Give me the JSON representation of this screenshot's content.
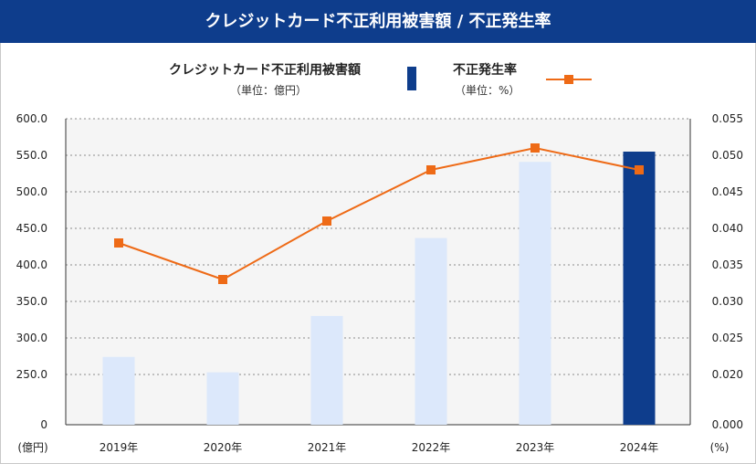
{
  "title": "クレジットカード不正利用被害額 / 不正発生率",
  "legend": {
    "bar_label": "クレジットカード不正利用被害額",
    "bar_unit": "（単位：億円）",
    "line_label": "不正発生率",
    "line_unit": "（単位：%）"
  },
  "colors": {
    "header": "#0e3d8c",
    "bar": "#dce8fb",
    "bar_highlight": "#0e3d8c",
    "line": "#ee6a16",
    "plot_bg": "#f5f5f5",
    "grid": "#8a8a8a"
  },
  "chart_data": {
    "type": "bar",
    "categories": [
      "2019年",
      "2020年",
      "2021年",
      "2022年",
      "2023年",
      "2024年"
    ],
    "series": [
      {
        "values": [
          274.1,
          253.0,
          330.1,
          436.7,
          540.9,
          555.0
        ],
        "axis": "left",
        "type": "bar"
      },
      {
        "values": [
          0.038,
          0.033,
          0.041,
          0.048,
          0.051,
          0.048
        ],
        "axis": "right",
        "type": "line"
      }
    ],
    "highlight_category": "2024年",
    "left_axis": {
      "unit": "(億円)",
      "ticks": [
        "600.0",
        "550.0",
        "500.0",
        "450.0",
        "400.0",
        "350.0",
        "300.0",
        "250.0",
        "0"
      ],
      "tick_values": [
        600,
        550,
        500,
        450,
        400,
        350,
        300,
        250,
        0
      ],
      "broken": true
    },
    "right_axis": {
      "unit": "(%)",
      "ticks": [
        "0.055",
        "0.050",
        "0.045",
        "0.040",
        "0.035",
        "0.030",
        "0.025",
        "0.020",
        "0.000"
      ],
      "tick_values": [
        0.055,
        0.05,
        0.045,
        0.04,
        0.035,
        0.03,
        0.025,
        0.02,
        0.0
      ]
    },
    "grid": true,
    "legend_position": "top"
  }
}
